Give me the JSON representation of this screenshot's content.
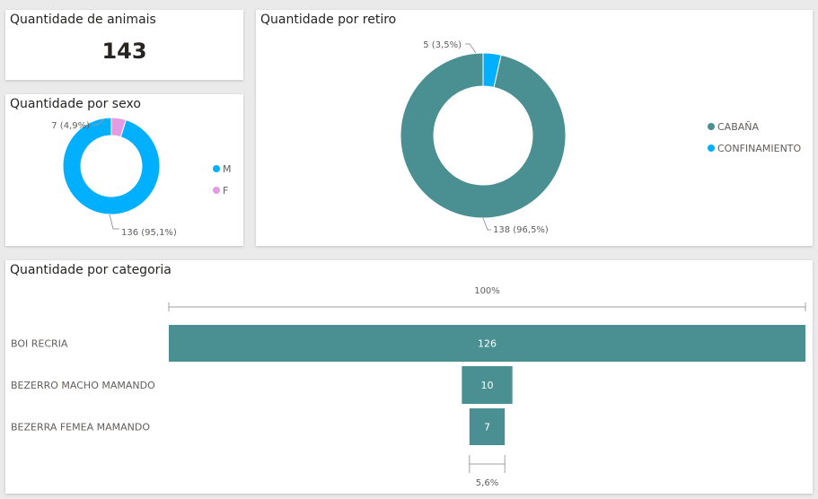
{
  "kpi_card": {
    "title": "Quantidade de animais",
    "value": "143"
  },
  "chart_data": [
    {
      "type": "pie",
      "donut": true,
      "title": "Quantidade por sexo",
      "categories": [
        "M",
        "F"
      ],
      "values": [
        136,
        7
      ],
      "data_labels": [
        "136 (95,1%)",
        "7 (4,9%)"
      ],
      "colors": [
        "#00b0ff",
        "#e39be3"
      ],
      "legend": "right"
    },
    {
      "type": "pie",
      "donut": true,
      "title": "Quantidade por retiro",
      "categories": [
        "CABAÑA",
        "CONFINAMIENTO"
      ],
      "values": [
        138,
        5
      ],
      "data_labels": [
        "138 (96,5%)",
        "5 (3,5%)"
      ],
      "colors": [
        "#4a8f91",
        "#00b0ff"
      ],
      "legend": "right"
    },
    {
      "type": "bar",
      "subtype": "funnel",
      "title": "Quantidade por categoria",
      "categories": [
        "BOI RECRIA",
        "BEZERRO MACHO MAMANDO",
        "BEZERRA FEMEA MAMANDO"
      ],
      "values": [
        126,
        10,
        7
      ],
      "top_label": "100%",
      "bottom_label": "5,6%",
      "color": "#4a8f91"
    }
  ]
}
